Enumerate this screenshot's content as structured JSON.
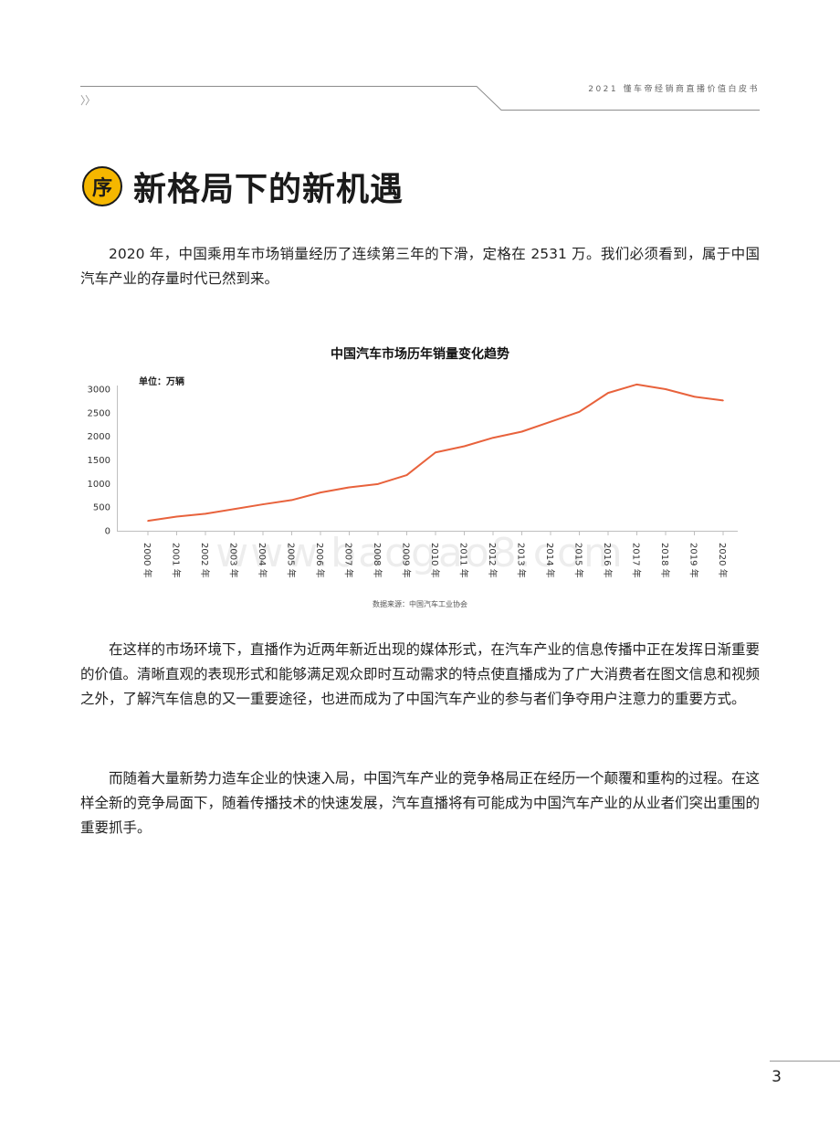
{
  "header": {
    "doc_title": "2021 懂车帝经销商直播价值白皮书",
    "chevron": "〉〉"
  },
  "section": {
    "badge": "序",
    "title": "新格局下的新机遇"
  },
  "paragraphs": {
    "p1": "2020 年，中国乘用车市场销量经历了连续第三年的下滑，定格在 2531 万。我们必须看到，属于中国汽车产业的存量时代已然到来。",
    "p2": "在这样的市场环境下，直播作为近两年新近出现的媒体形式，在汽车产业的信息传播中正在发挥日渐重要的价值。清晰直观的表现形式和能够满足观众即时互动需求的特点使直播成为了广大消费者在图文信息和视频之外，了解汽车信息的又一重要途径，也进而成为了中国汽车产业的参与者们争夺用户注意力的重要方式。",
    "p3": "而随着大量新势力造车企业的快速入局，中国汽车产业的竞争格局正在经历一个颠覆和重构的过程。在这样全新的竞争局面下，随着传播技术的快速发展，汽车直播将有可能成为中国汽车产业的从业者们突出重围的重要抓手。"
  },
  "chart_data": {
    "type": "line",
    "title": "中国汽车市场历年销量变化趋势",
    "unit_label": "单位：万辆",
    "source": "数据来源：中国汽车工业协会",
    "categories": [
      "2000 年",
      "2001 年",
      "2002 年",
      "2003 年",
      "2004 年",
      "2005 年",
      "2006 年",
      "2007 年",
      "2008 年",
      "2009 年",
      "2010 年",
      "2011 年",
      "2012 年",
      "2013 年",
      "2014 年",
      "2015 年",
      "2016 年",
      "2017 年",
      "2018 年",
      "2019 年",
      "2020 年"
    ],
    "values": [
      210,
      300,
      360,
      460,
      560,
      650,
      810,
      920,
      990,
      1180,
      1660,
      1790,
      1970,
      2100,
      2310,
      2520,
      2920,
      3100,
      3000,
      2840,
      2760
    ],
    "yticks": [
      0,
      500,
      1000,
      1500,
      2000,
      2500,
      3000
    ],
    "ylim": [
      0,
      3100
    ],
    "line_color": "#e8623c",
    "grid": false
  },
  "watermark": "www.baogao8.com",
  "page_number": "3"
}
